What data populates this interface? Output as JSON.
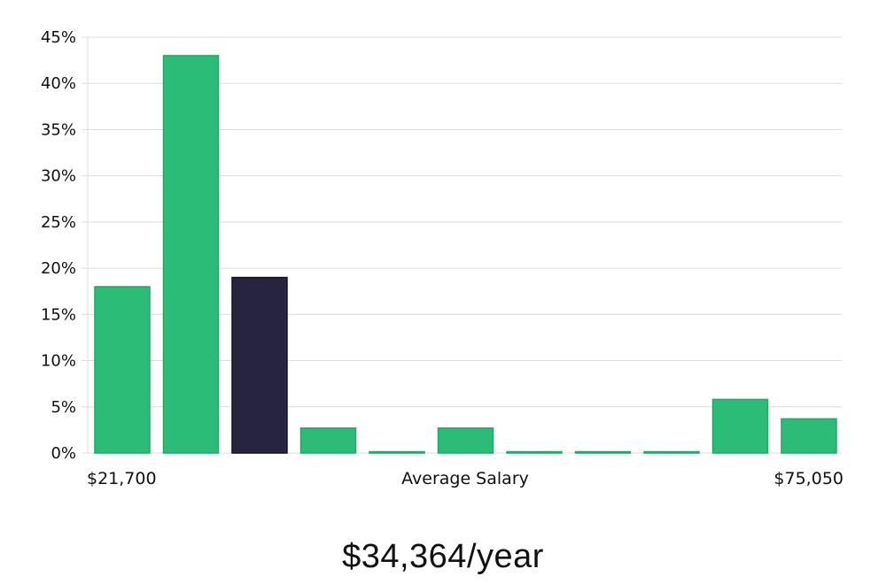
{
  "chart_data": {
    "type": "bar",
    "ylim": [
      0,
      45
    ],
    "y_ticks": [
      0,
      5,
      10,
      15,
      20,
      25,
      30,
      35,
      40,
      45
    ],
    "y_tick_suffix": "%",
    "values": [
      18,
      43,
      19,
      2.7,
      0,
      2.7,
      0,
      0,
      0,
      5.8,
      3.7
    ],
    "highlight_index": 2,
    "x_min_label": "$21,700",
    "x_max_label": "$75,050",
    "xlabel": "Average Salary",
    "grid": true,
    "colors": {
      "bar": "#2bbd77",
      "highlight": "#27243f",
      "grid": "#dddddd"
    }
  },
  "headline": "$34,364/year"
}
